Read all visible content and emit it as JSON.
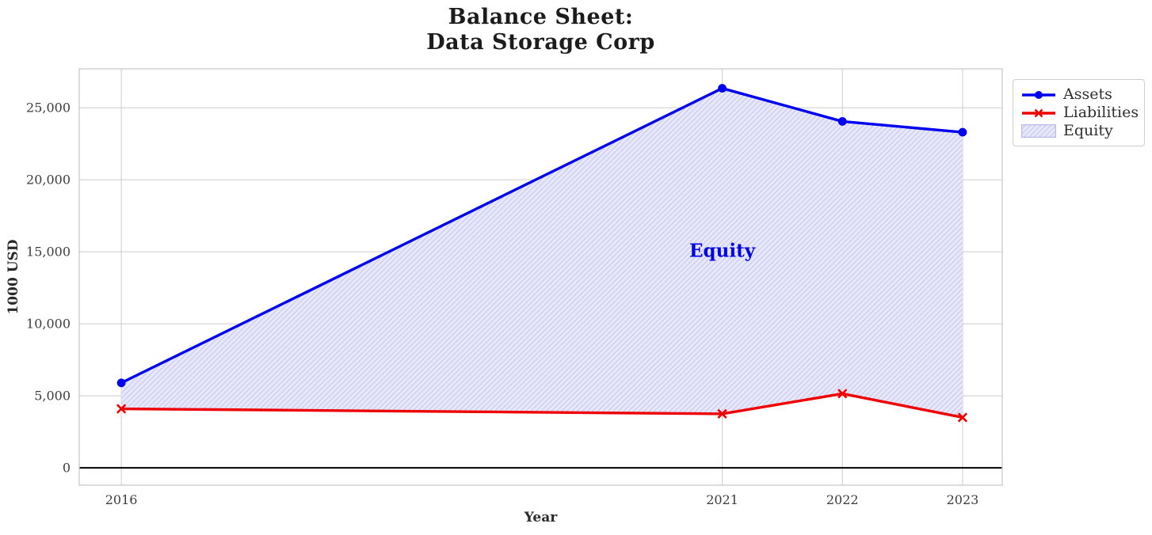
{
  "chart_data": {
    "type": "line",
    "title": "Balance Sheet:\nData Storage Corp",
    "xlabel": "Year",
    "ylabel": "1000 USD",
    "x": [
      2016,
      2021,
      2022,
      2023
    ],
    "xtick_labels": [
      "2016",
      "2021",
      "2022",
      "2023"
    ],
    "yticks": [
      0,
      5000,
      10000,
      15000,
      20000,
      25000
    ],
    "ytick_labels": [
      "0",
      "5,000",
      "10,000",
      "15,000",
      "20,000",
      "25,000"
    ],
    "xlim": [
      2015.65,
      2023.33
    ],
    "ylim": [
      -1200,
      27700
    ],
    "grid": true,
    "grid_color": "#cccccc",
    "border_color": "#c9c9c9",
    "zero_line": true,
    "zero_line_color": "#000000",
    "series": [
      {
        "name": "Assets",
        "color": "#0000ee",
        "marker": "circle",
        "line_width": 3.4,
        "values": [
          5900,
          26350,
          24050,
          23300
        ]
      },
      {
        "name": "Liabilities",
        "color": "#ee0000",
        "marker": "x",
        "line_width": 3.4,
        "values": [
          4100,
          3750,
          5150,
          3500
        ]
      }
    ],
    "area": {
      "name": "Equity",
      "between": [
        "Assets",
        "Liabilities"
      ],
      "fill_color": "#e8e8fb",
      "hatch_color": "#c9c9f0",
      "hatch": "/",
      "edge_color": "#b9b9f0"
    },
    "annotation": {
      "text": "Equity",
      "x": 2021,
      "y": 15100,
      "color": "#0202e8"
    },
    "legend": {
      "position": "upper-right-outside"
    }
  }
}
